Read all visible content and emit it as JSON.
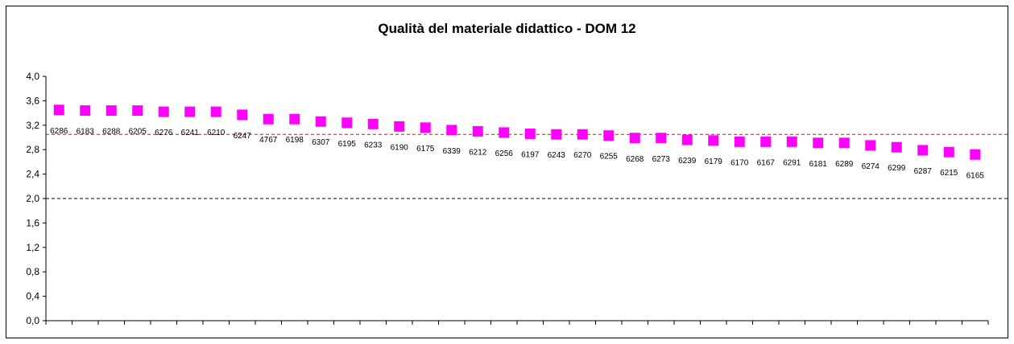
{
  "chart_data": {
    "type": "scatter",
    "title": "Qualità del materiale didattico - DOM 12",
    "ylim": [
      0,
      4.0
    ],
    "yticks": [
      "0,0",
      "0,4",
      "0,8",
      "1,2",
      "1,6",
      "2,0",
      "2,4",
      "2,8",
      "3,2",
      "3,6",
      "4,0"
    ],
    "ytick_values": [
      0,
      0.4,
      0.8,
      1.2,
      1.6,
      2.0,
      2.4,
      2.8,
      3.2,
      3.6,
      4.0
    ],
    "grid": false,
    "legend": "none",
    "marker_color": "#FF00FF",
    "reference_lines": [
      {
        "value": 3.05,
        "color": "#FF0000",
        "style": "dashed"
      },
      {
        "value": 2.0,
        "color": "#000000",
        "style": "dashed"
      }
    ],
    "points": [
      {
        "label": "6286",
        "value": 3.45
      },
      {
        "label": "6183",
        "value": 3.44
      },
      {
        "label": "6288",
        "value": 3.44
      },
      {
        "label": "6205",
        "value": 3.44
      },
      {
        "label": "6276",
        "value": 3.42
      },
      {
        "label": "6241",
        "value": 3.42
      },
      {
        "label": "6210",
        "value": 3.42
      },
      {
        "label": "6247",
        "value": 3.37
      },
      {
        "label": "4767",
        "value": 3.3
      },
      {
        "label": "6198",
        "value": 3.3
      },
      {
        "label": "6307",
        "value": 3.26
      },
      {
        "label": "6195",
        "value": 3.24
      },
      {
        "label": "6233",
        "value": 3.22
      },
      {
        "label": "6190",
        "value": 3.18
      },
      {
        "label": "6175",
        "value": 3.16
      },
      {
        "label": "6339",
        "value": 3.12
      },
      {
        "label": "6212",
        "value": 3.1
      },
      {
        "label": "6256",
        "value": 3.08
      },
      {
        "label": "6197",
        "value": 3.06
      },
      {
        "label": "6243",
        "value": 3.05
      },
      {
        "label": "6270",
        "value": 3.05
      },
      {
        "label": "6255",
        "value": 3.03
      },
      {
        "label": "6268",
        "value": 2.99
      },
      {
        "label": "6273",
        "value": 2.99
      },
      {
        "label": "6239",
        "value": 2.96
      },
      {
        "label": "6179",
        "value": 2.95
      },
      {
        "label": "6170",
        "value": 2.93
      },
      {
        "label": "6167",
        "value": 2.93
      },
      {
        "label": "6291",
        "value": 2.93
      },
      {
        "label": "6181",
        "value": 2.91
      },
      {
        "label": "6289",
        "value": 2.91
      },
      {
        "label": "6274",
        "value": 2.87
      },
      {
        "label": "6299",
        "value": 2.84
      },
      {
        "label": "6287",
        "value": 2.79
      },
      {
        "label": "6215",
        "value": 2.76
      },
      {
        "label": "6165",
        "value": 2.72
      }
    ]
  }
}
